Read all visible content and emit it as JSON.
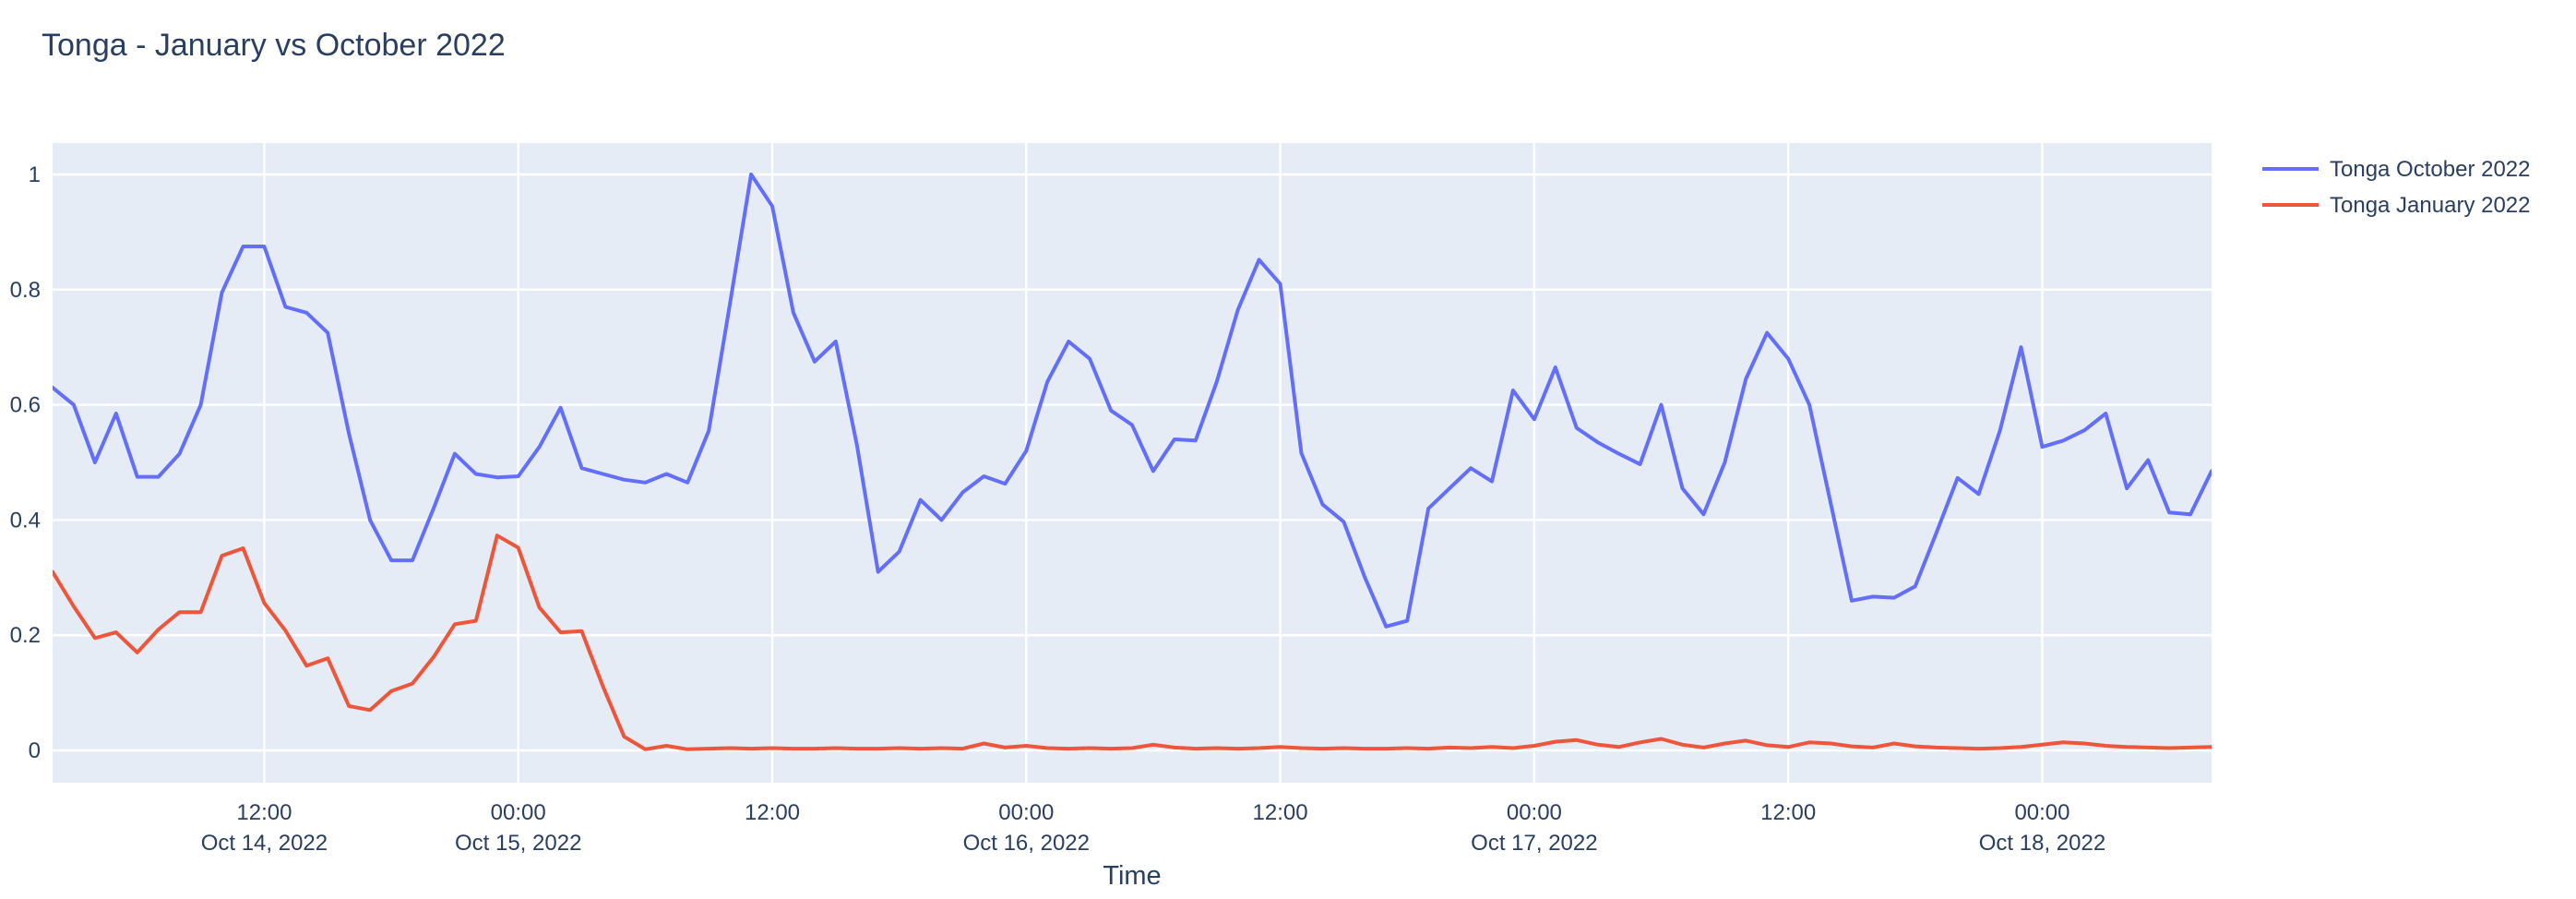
{
  "page": {
    "background": "#ffffff"
  },
  "chart_data": {
    "type": "line",
    "title": "Tonga - January vs October 2022",
    "xlabel": "Time",
    "ylabel": "",
    "plot_bgcolor": "#E5ECF6",
    "grid": true,
    "gridcolor": "#FFFFFF",
    "label_color": "#2a3f5f",
    "legend_position": "right-top",
    "ylim": [
      0,
      1
    ],
    "y_ticks": [
      "0",
      "0.2",
      "0.4",
      "0.6",
      "0.8",
      "1"
    ],
    "x_range": [
      "Oct 14 2022 02:00",
      "Oct 18 2022 08:00"
    ],
    "x_ticks": [
      {
        "index": 10,
        "time": "12:00",
        "date": "Oct 14, 2022"
      },
      {
        "index": 22,
        "time": "00:00",
        "date": "Oct 15, 2022"
      },
      {
        "index": 34,
        "time": "12:00",
        "date": ""
      },
      {
        "index": 46,
        "time": "00:00",
        "date": "Oct 16, 2022"
      },
      {
        "index": 58,
        "time": "12:00",
        "date": ""
      },
      {
        "index": 70,
        "time": "00:00",
        "date": "Oct 17, 2022"
      },
      {
        "index": 82,
        "time": "12:00",
        "date": ""
      },
      {
        "index": 94,
        "time": "00:00",
        "date": "Oct 18, 2022"
      }
    ],
    "x": [
      "Oct 14 02:00",
      "Oct 14 03:00",
      "Oct 14 04:00",
      "Oct 14 05:00",
      "Oct 14 06:00",
      "Oct 14 07:00",
      "Oct 14 08:00",
      "Oct 14 09:00",
      "Oct 14 10:00",
      "Oct 14 11:00",
      "Oct 14 12:00",
      "Oct 14 13:00",
      "Oct 14 14:00",
      "Oct 14 15:00",
      "Oct 14 16:00",
      "Oct 14 17:00",
      "Oct 14 18:00",
      "Oct 14 19:00",
      "Oct 14 20:00",
      "Oct 14 21:00",
      "Oct 14 22:00",
      "Oct 14 23:00",
      "Oct 15 00:00",
      "Oct 15 01:00",
      "Oct 15 02:00",
      "Oct 15 03:00",
      "Oct 15 04:00",
      "Oct 15 05:00",
      "Oct 15 06:00",
      "Oct 15 07:00",
      "Oct 15 08:00",
      "Oct 15 09:00",
      "Oct 15 10:00",
      "Oct 15 11:00",
      "Oct 15 12:00",
      "Oct 15 13:00",
      "Oct 15 14:00",
      "Oct 15 15:00",
      "Oct 15 16:00",
      "Oct 15 17:00",
      "Oct 15 18:00",
      "Oct 15 19:00",
      "Oct 15 20:00",
      "Oct 15 21:00",
      "Oct 15 22:00",
      "Oct 15 23:00",
      "Oct 16 00:00",
      "Oct 16 01:00",
      "Oct 16 02:00",
      "Oct 16 03:00",
      "Oct 16 04:00",
      "Oct 16 05:00",
      "Oct 16 06:00",
      "Oct 16 07:00",
      "Oct 16 08:00",
      "Oct 16 09:00",
      "Oct 16 10:00",
      "Oct 16 11:00",
      "Oct 16 12:00",
      "Oct 16 13:00",
      "Oct 16 14:00",
      "Oct 16 15:00",
      "Oct 16 16:00",
      "Oct 16 17:00",
      "Oct 16 18:00",
      "Oct 16 19:00",
      "Oct 16 20:00",
      "Oct 16 21:00",
      "Oct 16 22:00",
      "Oct 16 23:00",
      "Oct 17 00:00",
      "Oct 17 01:00",
      "Oct 17 02:00",
      "Oct 17 03:00",
      "Oct 17 04:00",
      "Oct 17 05:00",
      "Oct 17 06:00",
      "Oct 17 07:00",
      "Oct 17 08:00",
      "Oct 17 09:00",
      "Oct 17 10:00",
      "Oct 17 11:00",
      "Oct 17 12:00",
      "Oct 17 13:00",
      "Oct 17 14:00",
      "Oct 17 15:00",
      "Oct 17 16:00",
      "Oct 17 17:00",
      "Oct 17 18:00",
      "Oct 17 19:00",
      "Oct 17 20:00",
      "Oct 17 21:00",
      "Oct 17 22:00",
      "Oct 17 23:00",
      "Oct 18 00:00",
      "Oct 18 01:00",
      "Oct 18 02:00",
      "Oct 18 03:00",
      "Oct 18 04:00",
      "Oct 18 05:00",
      "Oct 18 06:00",
      "Oct 18 07:00",
      "Oct 18 08:00"
    ],
    "series": [
      {
        "name": "Tonga October 2022",
        "color": "#636EFA",
        "values": [
          0.63,
          0.6,
          0.5,
          0.585,
          0.475,
          0.475,
          0.515,
          0.6,
          0.795,
          0.875,
          0.875,
          0.77,
          0.76,
          0.725,
          0.55,
          0.4,
          0.33,
          0.33,
          0.42,
          0.515,
          0.48,
          0.474,
          0.476,
          0.527,
          0.595,
          0.49,
          0.48,
          0.47,
          0.465,
          0.48,
          0.465,
          0.555,
          0.775,
          1.0,
          0.945,
          0.76,
          0.675,
          0.71,
          0.53,
          0.31,
          0.345,
          0.435,
          0.4,
          0.448,
          0.476,
          0.463,
          0.52,
          0.64,
          0.71,
          0.68,
          0.59,
          0.565,
          0.485,
          0.54,
          0.538,
          0.64,
          0.765,
          0.852,
          0.81,
          0.516,
          0.427,
          0.397,
          0.3,
          0.215,
          0.225,
          0.42,
          0.455,
          0.49,
          0.467,
          0.625,
          0.575,
          0.665,
          0.56,
          0.535,
          0.515,
          0.497,
          0.6,
          0.455,
          0.41,
          0.5,
          0.645,
          0.725,
          0.68,
          0.6,
          0.43,
          0.26,
          0.267,
          0.265,
          0.285,
          0.378,
          0.473,
          0.445,
          0.555,
          0.7,
          0.527,
          0.538,
          0.556,
          0.585,
          0.455,
          0.504,
          0.413,
          0.41,
          0.485
        ]
      },
      {
        "name": "Tonga January 2022",
        "color": "#EF553B",
        "values": [
          0.31,
          0.25,
          0.195,
          0.205,
          0.17,
          0.21,
          0.24,
          0.24,
          0.338,
          0.351,
          0.256,
          0.208,
          0.147,
          0.16,
          0.077,
          0.07,
          0.103,
          0.116,
          0.162,
          0.219,
          0.225,
          0.373,
          0.352,
          0.248,
          0.205,
          0.207,
          0.111,
          0.024,
          0.002,
          0.008,
          0.002,
          0.003,
          0.004,
          0.003,
          0.004,
          0.003,
          0.003,
          0.004,
          0.003,
          0.003,
          0.004,
          0.003,
          0.004,
          0.003,
          0.012,
          0.005,
          0.008,
          0.004,
          0.003,
          0.004,
          0.003,
          0.004,
          0.01,
          0.005,
          0.003,
          0.004,
          0.003,
          0.004,
          0.006,
          0.004,
          0.003,
          0.004,
          0.003,
          0.003,
          0.004,
          0.003,
          0.005,
          0.004,
          0.006,
          0.004,
          0.008,
          0.015,
          0.018,
          0.01,
          0.006,
          0.014,
          0.02,
          0.01,
          0.005,
          0.012,
          0.017,
          0.009,
          0.006,
          0.014,
          0.012,
          0.007,
          0.005,
          0.012,
          0.007,
          0.005,
          0.004,
          0.003,
          0.004,
          0.006,
          0.01,
          0.014,
          0.012,
          0.008,
          0.006,
          0.005,
          0.004,
          0.005,
          0.006
        ]
      }
    ]
  }
}
